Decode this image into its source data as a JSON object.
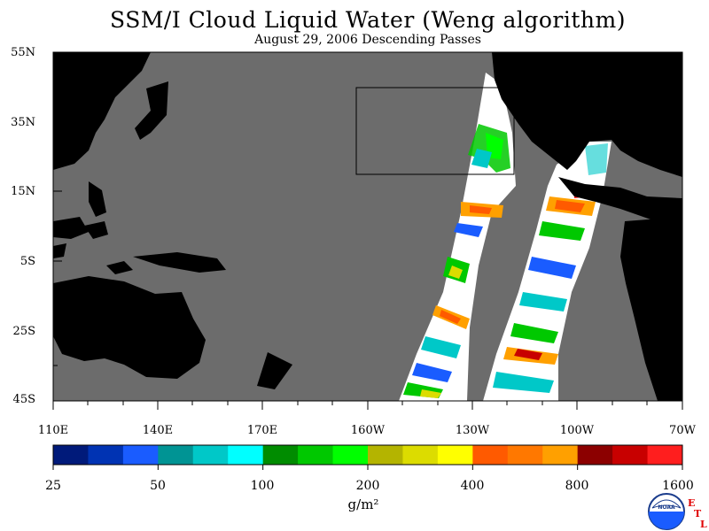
{
  "title": "SSM/I Cloud Liquid Water (Weng algorithm)",
  "subtitle": "August 29, 2006  Descending Passes",
  "latitude_labels": [
    "55N",
    "35N",
    "15N",
    "5S",
    "25S",
    "45S"
  ],
  "longitude_labels": [
    "110E",
    "140E",
    "170E",
    "160W",
    "130W",
    "100W",
    "70W"
  ],
  "colorbar": {
    "labels": [
      "25",
      "50",
      "100",
      "200",
      "400",
      "800",
      "1600"
    ],
    "colors": [
      "#001a7a",
      "#0033b3",
      "#1a5cff",
      "#009494",
      "#00c8c8",
      "#00ffff",
      "#008c00",
      "#00c800",
      "#00ff00",
      "#b4b400",
      "#dcdc00",
      "#ffff00",
      "#ff5a00",
      "#ff7800",
      "#ffa000",
      "#8c0000",
      "#c80000",
      "#ff1e1e"
    ]
  },
  "units": "g/m²",
  "colors": {
    "ocean": "#6c6c6c",
    "land": "#000000",
    "no_data_swath": "#ffffff"
  },
  "logo": {
    "noaa": "NOAA",
    "etl": [
      "E",
      "T",
      "L"
    ]
  }
}
